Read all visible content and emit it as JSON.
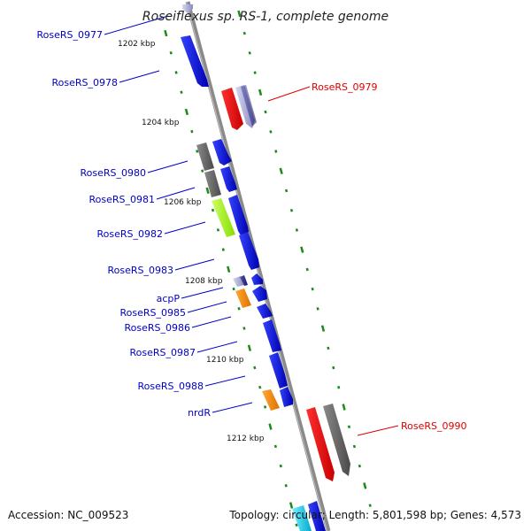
{
  "title": "Roseiflexus sp. RS-1, complete genome",
  "accession_label": "Accession: NC_009523",
  "topology_label": "Topology: circular; Length: 5,801,598 bp; Genes: 4,573",
  "colors": {
    "left_label": "#0000c8",
    "right_label": "#dd0000",
    "tick": "#1a8a1a",
    "backbone": "#8a8a8a"
  },
  "kbp_marks": [
    "1202 kbp",
    "1204 kbp",
    "1206 kbp",
    "1208 kbp",
    "1210 kbp",
    "1212 kbp"
  ],
  "left_genes": [
    "RoseRS_0977",
    "RoseRS_0978",
    "RoseRS_0980",
    "RoseRS_0981",
    "RoseRS_0982",
    "RoseRS_0983",
    "acpP",
    "RoseRS_0985",
    "RoseRS_0986",
    "RoseRS_0987",
    "RoseRS_0988",
    "nrdR"
  ],
  "right_genes": [
    "RoseRS_0979",
    "RoseRS_0990"
  ]
}
